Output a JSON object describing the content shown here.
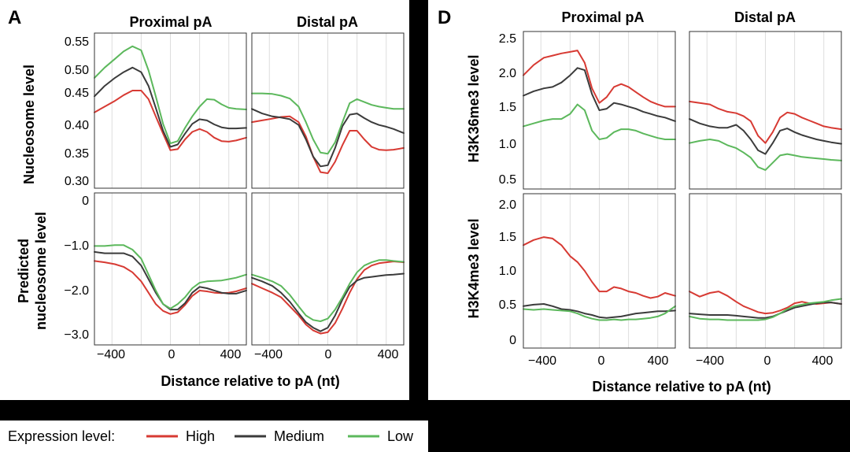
{
  "colors": {
    "High": "#d73a33",
    "Medium": "#3b3b3b",
    "Low": "#5cb85c"
  },
  "legend": {
    "title": "Expression level:",
    "items": [
      "High",
      "Medium",
      "Low"
    ]
  },
  "figure_a": {
    "letter": "A",
    "columns": [
      "Proximal pA",
      "Distal pA"
    ],
    "xlabel": "Distance relative to pA (nt)",
    "xticks": [
      "−400",
      "0",
      "400"
    ],
    "rows": [
      {
        "ylabel": "Nucleosome level",
        "yticks": [
          "0.55",
          "0.50",
          "0.45",
          "0.40",
          "0.35",
          "0.30"
        ]
      },
      {
        "ylabel_lines": [
          "Predicted",
          "nucleosome level"
        ],
        "yticks": [
          "0",
          "−1.0",
          "−2.0",
          "−3.0"
        ]
      }
    ]
  },
  "figure_d": {
    "letter": "D",
    "columns": [
      "Proximal pA",
      "Distal pA"
    ],
    "xlabel": "Distance relative to pA (nt)",
    "xticks": [
      "−400",
      "0",
      "400"
    ],
    "rows": [
      {
        "ylabel": "H3K36me3 level",
        "yticks": [
          "2.5",
          "2.0",
          "1.5",
          "1.0",
          "0.5"
        ]
      },
      {
        "ylabel": "H3K4me3 level",
        "yticks": [
          "2.0",
          "1.5",
          "1.0",
          "0.5",
          "0"
        ]
      }
    ]
  },
  "chart_data": [
    {
      "type": "line",
      "panel": "A",
      "row": "Nucleosome level",
      "column": "Proximal pA",
      "ylabel": "Nucleosome level",
      "xlabel": "Distance relative to pA (nt)",
      "xlim": [
        -520,
        520
      ],
      "ylim": [
        0.29,
        0.56
      ],
      "x": [
        -520,
        -450,
        -380,
        -320,
        -260,
        -200,
        -150,
        -100,
        -50,
        0,
        50,
        100,
        150,
        200,
        250,
        300,
        350,
        400,
        450,
        520
      ],
      "series": [
        {
          "name": "High",
          "values": [
            0.422,
            0.432,
            0.442,
            0.452,
            0.46,
            0.46,
            0.445,
            0.415,
            0.385,
            0.356,
            0.358,
            0.375,
            0.388,
            0.393,
            0.388,
            0.378,
            0.372,
            0.371,
            0.373,
            0.378
          ]
        },
        {
          "name": "Medium",
          "values": [
            0.45,
            0.468,
            0.482,
            0.492,
            0.5,
            0.492,
            0.468,
            0.43,
            0.39,
            0.362,
            0.366,
            0.385,
            0.402,
            0.41,
            0.408,
            0.401,
            0.396,
            0.394,
            0.394,
            0.395
          ]
        },
        {
          "name": "Low",
          "values": [
            0.482,
            0.5,
            0.515,
            0.528,
            0.537,
            0.53,
            0.495,
            0.45,
            0.402,
            0.368,
            0.372,
            0.395,
            0.415,
            0.432,
            0.445,
            0.444,
            0.436,
            0.43,
            0.428,
            0.427
          ]
        }
      ]
    },
    {
      "type": "line",
      "panel": "A",
      "row": "Nucleosome level",
      "column": "Distal pA",
      "ylabel": "Nucleosome level",
      "xlabel": "Distance relative to pA (nt)",
      "xlim": [
        -520,
        520
      ],
      "ylim": [
        0.29,
        0.56
      ],
      "x": [
        -520,
        -450,
        -380,
        -320,
        -260,
        -200,
        -150,
        -100,
        -50,
        0,
        50,
        100,
        150,
        200,
        250,
        300,
        350,
        400,
        450,
        520
      ],
      "series": [
        {
          "name": "High",
          "values": [
            0.405,
            0.408,
            0.411,
            0.414,
            0.415,
            0.405,
            0.38,
            0.345,
            0.318,
            0.316,
            0.336,
            0.365,
            0.39,
            0.39,
            0.375,
            0.362,
            0.357,
            0.356,
            0.357,
            0.36
          ]
        },
        {
          "name": "Medium",
          "values": [
            0.428,
            0.42,
            0.415,
            0.413,
            0.41,
            0.4,
            0.375,
            0.345,
            0.328,
            0.33,
            0.36,
            0.398,
            0.418,
            0.42,
            0.412,
            0.405,
            0.4,
            0.397,
            0.393,
            0.386
          ]
        },
        {
          "name": "Low",
          "values": [
            0.455,
            0.455,
            0.454,
            0.451,
            0.446,
            0.432,
            0.405,
            0.375,
            0.352,
            0.35,
            0.37,
            0.405,
            0.438,
            0.445,
            0.44,
            0.435,
            0.432,
            0.43,
            0.428,
            0.428
          ]
        }
      ]
    },
    {
      "type": "line",
      "panel": "A",
      "row": "Predicted nucleosome level",
      "column": "Proximal pA",
      "ylabel": "Predicted nucleosome level",
      "xlabel": "Distance relative to pA (nt)",
      "xlim": [
        -520,
        520
      ],
      "ylim": [
        -3.2,
        0.15
      ],
      "x": [
        -520,
        -450,
        -380,
        -320,
        -260,
        -200,
        -150,
        -100,
        -50,
        0,
        50,
        100,
        150,
        200,
        250,
        300,
        350,
        400,
        450,
        520
      ],
      "series": [
        {
          "name": "High",
          "values": [
            -1.35,
            -1.38,
            -1.42,
            -1.48,
            -1.6,
            -1.8,
            -2.05,
            -2.3,
            -2.45,
            -2.52,
            -2.48,
            -2.32,
            -2.12,
            -2.0,
            -2.02,
            -2.05,
            -2.06,
            -2.05,
            -2.02,
            -1.95
          ]
        },
        {
          "name": "Medium",
          "values": [
            -1.15,
            -1.18,
            -1.18,
            -1.18,
            -1.25,
            -1.45,
            -1.75,
            -2.05,
            -2.3,
            -2.42,
            -2.42,
            -2.28,
            -2.05,
            -1.92,
            -1.95,
            -2.0,
            -2.05,
            -2.07,
            -2.07,
            -2.0
          ]
        },
        {
          "name": "Low",
          "values": [
            -1.02,
            -1.02,
            -1.0,
            -1.0,
            -1.1,
            -1.3,
            -1.65,
            -2.0,
            -2.3,
            -2.4,
            -2.3,
            -2.15,
            -1.95,
            -1.83,
            -1.8,
            -1.79,
            -1.78,
            -1.75,
            -1.72,
            -1.65
          ]
        }
      ]
    },
    {
      "type": "line",
      "panel": "A",
      "row": "Predicted nucleosome level",
      "column": "Distal pA",
      "ylabel": "Predicted nucleosome level",
      "xlabel": "Distance relative to pA (nt)",
      "xlim": [
        -520,
        520
      ],
      "ylim": [
        -3.2,
        0.15
      ],
      "x": [
        -520,
        -450,
        -380,
        -320,
        -260,
        -200,
        -150,
        -100,
        -50,
        0,
        50,
        100,
        150,
        200,
        250,
        300,
        350,
        400,
        450,
        520
      ],
      "series": [
        {
          "name": "High",
          "values": [
            -1.85,
            -1.95,
            -2.05,
            -2.15,
            -2.35,
            -2.55,
            -2.75,
            -2.88,
            -2.95,
            -2.92,
            -2.72,
            -2.4,
            -2.05,
            -1.75,
            -1.55,
            -1.45,
            -1.4,
            -1.38,
            -1.36,
            -1.38
          ]
        },
        {
          "name": "Medium",
          "values": [
            -1.72,
            -1.8,
            -1.9,
            -2.05,
            -2.25,
            -2.5,
            -2.7,
            -2.82,
            -2.9,
            -2.82,
            -2.55,
            -2.2,
            -1.92,
            -1.78,
            -1.72,
            -1.7,
            -1.68,
            -1.66,
            -1.65,
            -1.63
          ]
        },
        {
          "name": "Low",
          "values": [
            -1.65,
            -1.72,
            -1.8,
            -1.9,
            -2.1,
            -2.35,
            -2.55,
            -2.65,
            -2.68,
            -2.62,
            -2.42,
            -2.15,
            -1.85,
            -1.6,
            -1.45,
            -1.38,
            -1.33,
            -1.33,
            -1.35,
            -1.37
          ]
        }
      ]
    },
    {
      "type": "line",
      "panel": "D",
      "row": "H3K36me3 level",
      "column": "Proximal pA",
      "ylabel": "H3K36me3 level",
      "xlabel": "Distance relative to pA (nt)",
      "xlim": [
        -520,
        520
      ],
      "ylim": [
        0.42,
        2.58
      ],
      "x": [
        -520,
        -450,
        -380,
        -320,
        -260,
        -200,
        -150,
        -100,
        -50,
        0,
        50,
        100,
        150,
        200,
        250,
        300,
        350,
        400,
        450,
        520
      ],
      "series": [
        {
          "name": "High",
          "values": [
            1.98,
            2.12,
            2.22,
            2.25,
            2.28,
            2.3,
            2.32,
            2.15,
            1.8,
            1.6,
            1.68,
            1.82,
            1.86,
            1.82,
            1.75,
            1.68,
            1.62,
            1.58,
            1.55,
            1.55
          ]
        },
        {
          "name": "Medium",
          "values": [
            1.7,
            1.76,
            1.8,
            1.82,
            1.88,
            1.98,
            2.08,
            2.05,
            1.72,
            1.5,
            1.52,
            1.6,
            1.58,
            1.55,
            1.52,
            1.48,
            1.45,
            1.42,
            1.4,
            1.35
          ]
        },
        {
          "name": "Low",
          "values": [
            1.28,
            1.32,
            1.36,
            1.38,
            1.38,
            1.45,
            1.58,
            1.5,
            1.22,
            1.1,
            1.12,
            1.2,
            1.24,
            1.24,
            1.22,
            1.18,
            1.15,
            1.12,
            1.1,
            1.1
          ]
        }
      ]
    },
    {
      "type": "line",
      "panel": "D",
      "row": "H3K36me3 level",
      "column": "Distal pA",
      "ylabel": "H3K36me3 level",
      "xlabel": "Distance relative to pA (nt)",
      "xlim": [
        -520,
        520
      ],
      "ylim": [
        0.42,
        2.58
      ],
      "x": [
        -520,
        -450,
        -380,
        -320,
        -260,
        -200,
        -150,
        -100,
        -50,
        0,
        50,
        100,
        150,
        200,
        250,
        300,
        350,
        400,
        450,
        520
      ],
      "series": [
        {
          "name": "High",
          "values": [
            1.62,
            1.6,
            1.58,
            1.52,
            1.48,
            1.46,
            1.42,
            1.35,
            1.15,
            1.05,
            1.2,
            1.4,
            1.47,
            1.45,
            1.4,
            1.36,
            1.32,
            1.28,
            1.26,
            1.24
          ]
        },
        {
          "name": "Medium",
          "values": [
            1.38,
            1.32,
            1.28,
            1.26,
            1.26,
            1.3,
            1.22,
            1.1,
            0.95,
            0.9,
            1.05,
            1.22,
            1.25,
            1.2,
            1.16,
            1.13,
            1.1,
            1.08,
            1.06,
            1.04
          ]
        },
        {
          "name": "Low",
          "values": [
            1.05,
            1.08,
            1.1,
            1.08,
            1.02,
            0.98,
            0.92,
            0.85,
            0.72,
            0.68,
            0.78,
            0.88,
            0.9,
            0.88,
            0.86,
            0.85,
            0.84,
            0.83,
            0.82,
            0.81
          ]
        }
      ]
    },
    {
      "type": "line",
      "panel": "D",
      "row": "H3K4me3 level",
      "column": "Proximal pA",
      "ylabel": "H3K4me3 level",
      "xlabel": "Distance relative to pA (nt)",
      "xlim": [
        -520,
        520
      ],
      "ylim": [
        -0.05,
        2.05
      ],
      "x": [
        -520,
        -450,
        -380,
        -320,
        -260,
        -200,
        -150,
        -100,
        -50,
        0,
        50,
        100,
        150,
        200,
        250,
        300,
        350,
        400,
        450,
        520
      ],
      "series": [
        {
          "name": "High",
          "values": [
            1.35,
            1.42,
            1.46,
            1.44,
            1.35,
            1.2,
            1.12,
            1.0,
            0.85,
            0.72,
            0.72,
            0.78,
            0.76,
            0.72,
            0.7,
            0.66,
            0.63,
            0.65,
            0.7,
            0.66
          ]
        },
        {
          "name": "Medium",
          "values": [
            0.52,
            0.54,
            0.55,
            0.52,
            0.48,
            0.47,
            0.45,
            0.42,
            0.4,
            0.37,
            0.36,
            0.37,
            0.38,
            0.4,
            0.42,
            0.43,
            0.44,
            0.45,
            0.45,
            0.46
          ]
        },
        {
          "name": "Low",
          "values": [
            0.48,
            0.47,
            0.48,
            0.47,
            0.46,
            0.45,
            0.42,
            0.38,
            0.35,
            0.33,
            0.33,
            0.34,
            0.33,
            0.34,
            0.34,
            0.35,
            0.36,
            0.38,
            0.42,
            0.52
          ]
        }
      ]
    },
    {
      "type": "line",
      "panel": "D",
      "row": "H3K4me3 level",
      "column": "Distal pA",
      "ylabel": "H3K4me3 level",
      "xlabel": "Distance relative to pA (nt)",
      "xlim": [
        -520,
        520
      ],
      "ylim": [
        -0.05,
        2.05
      ],
      "x": [
        -520,
        -450,
        -380,
        -320,
        -260,
        -200,
        -150,
        -100,
        -50,
        0,
        50,
        100,
        150,
        200,
        250,
        300,
        350,
        400,
        450,
        520
      ],
      "series": [
        {
          "name": "High",
          "values": [
            0.72,
            0.65,
            0.7,
            0.72,
            0.66,
            0.58,
            0.52,
            0.48,
            0.44,
            0.42,
            0.43,
            0.46,
            0.5,
            0.56,
            0.58,
            0.56,
            0.55,
            0.56,
            0.57,
            0.55
          ]
        },
        {
          "name": "Medium",
          "values": [
            0.42,
            0.41,
            0.4,
            0.4,
            0.4,
            0.39,
            0.38,
            0.37,
            0.36,
            0.36,
            0.38,
            0.42,
            0.46,
            0.5,
            0.52,
            0.54,
            0.56,
            0.57,
            0.57,
            0.55
          ]
        },
        {
          "name": "Low",
          "values": [
            0.38,
            0.35,
            0.34,
            0.34,
            0.33,
            0.33,
            0.33,
            0.33,
            0.33,
            0.34,
            0.37,
            0.42,
            0.48,
            0.52,
            0.54,
            0.56,
            0.57,
            0.58,
            0.6,
            0.62
          ]
        }
      ]
    }
  ]
}
